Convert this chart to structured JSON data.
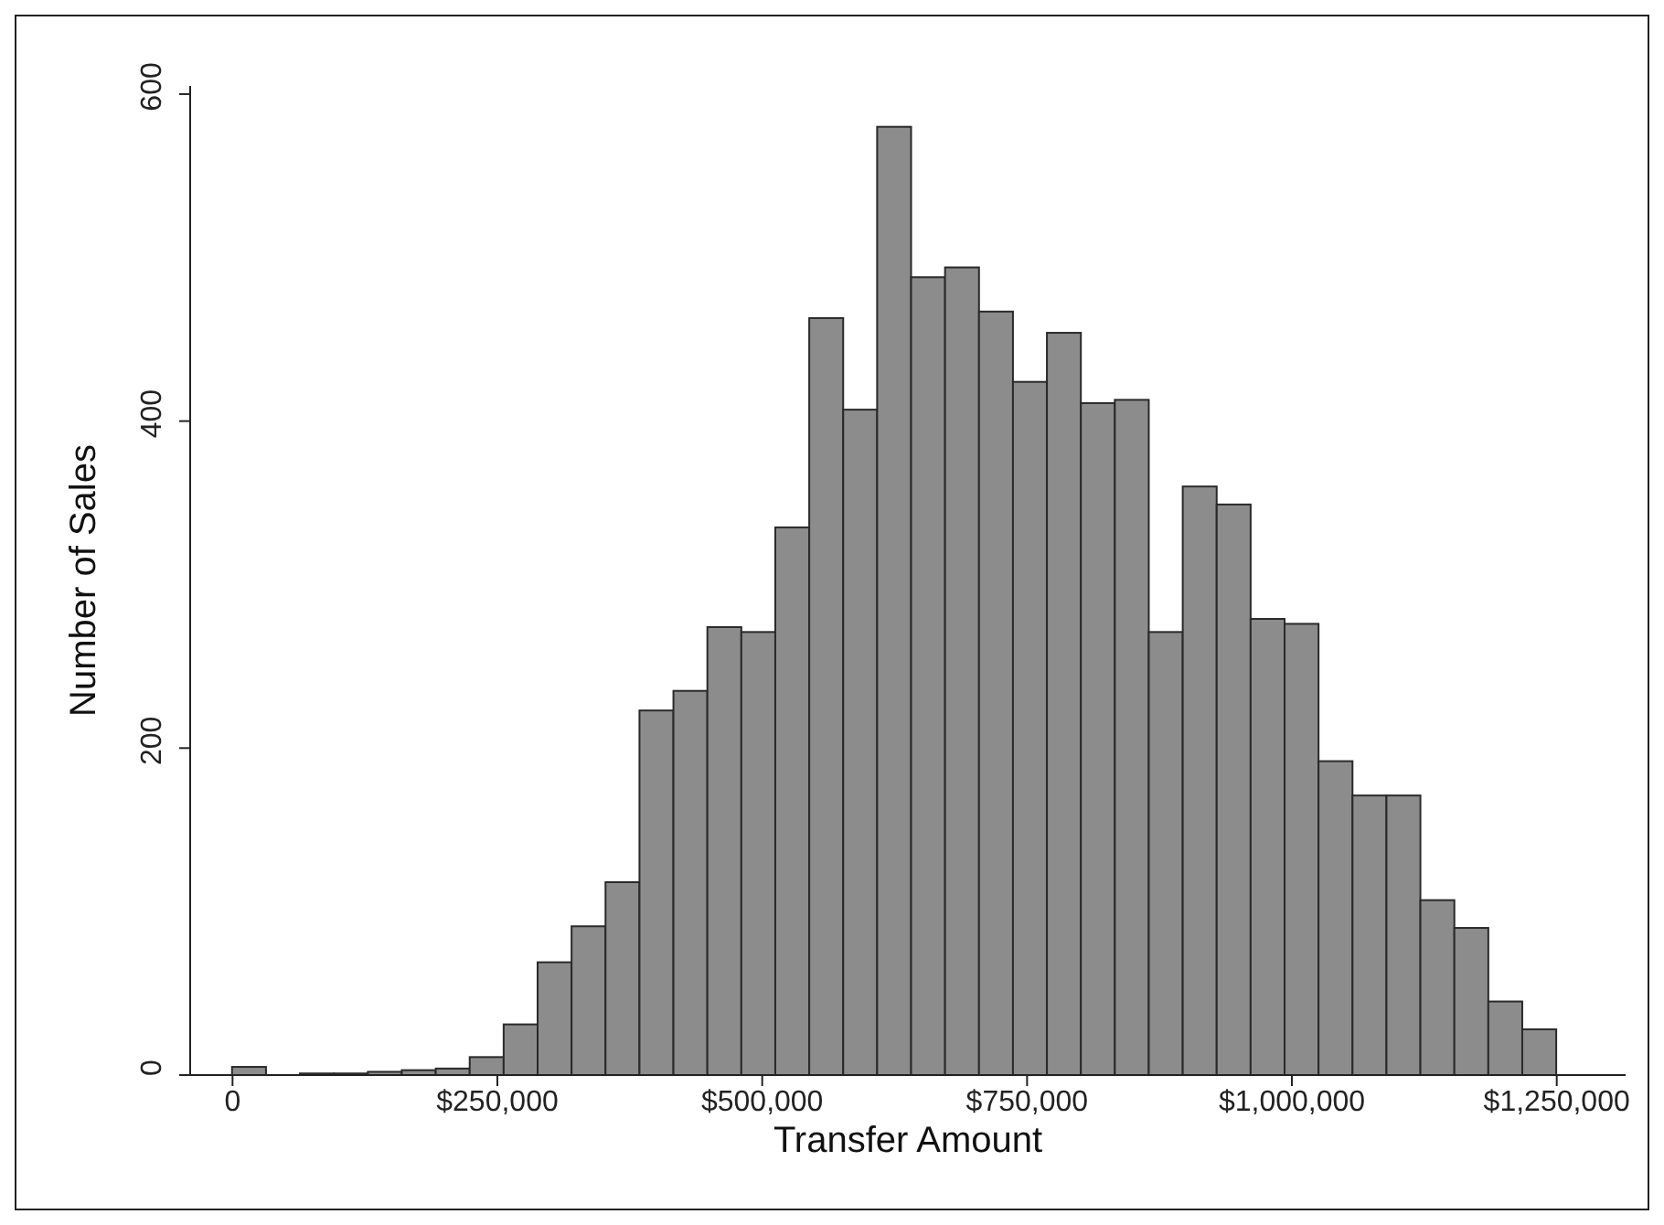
{
  "chart_data": {
    "type": "histogram",
    "xlabel": "Transfer Amount",
    "ylabel": "Number of Sales",
    "bins": [
      0,
      32051,
      64103,
      96154,
      128205,
      160256,
      192308,
      224359,
      256410,
      288462,
      320513,
      352564,
      384615,
      416667,
      448718,
      480769,
      512821,
      544872,
      576923,
      608974,
      641026,
      673077,
      705128,
      737179,
      769231,
      801282,
      833333,
      865385,
      897436,
      929487,
      961538,
      993590,
      1025641,
      1057692,
      1089744,
      1121795,
      1153846,
      1185897,
      1217949,
      1250000
    ],
    "values": [
      5,
      0,
      1,
      1,
      2,
      3,
      4,
      11,
      31,
      69,
      91,
      118,
      223,
      235,
      274,
      271,
      335,
      463,
      407,
      580,
      488,
      494,
      467,
      424,
      454,
      411,
      413,
      271,
      360,
      349,
      279,
      276,
      192,
      171,
      171,
      107,
      90,
      45,
      28
    ],
    "color": "#8c8c8c",
    "xlim": [
      -40000,
      1315000
    ],
    "xticks": [
      0,
      {
        "value": 250000,
        "label": "$250,000"
      },
      {
        "value": 500000,
        "label": "$500,000"
      },
      {
        "value": 750000,
        "label": "$750,000"
      },
      {
        "value": 1000000,
        "label": "$1,000,000"
      },
      {
        "value": 1250000,
        "label": "$1,250,000"
      }
    ],
    "ylim": [
      0,
      605
    ],
    "yticks": [
      0,
      200,
      400,
      600
    ],
    "grid": false
  }
}
